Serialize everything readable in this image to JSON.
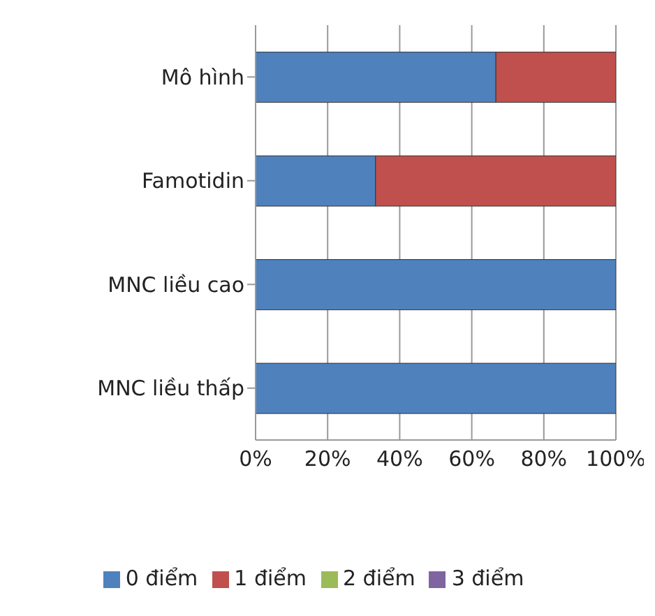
{
  "chart_data": {
    "type": "bar",
    "orientation": "horizontal",
    "stacked": true,
    "categories": [
      "Mô hình",
      "Famotidin",
      "MNC liều cao",
      "MNC liều thấp"
    ],
    "series": [
      {
        "name": "0 điểm",
        "color": "#4f81bd",
        "values": [
          66.7,
          33.3,
          100,
          100
        ]
      },
      {
        "name": "1 điểm",
        "color": "#c0504d",
        "values": [
          33.3,
          66.7,
          0,
          0
        ]
      },
      {
        "name": "2 điểm",
        "color": "#9bbb59",
        "values": [
          0,
          0,
          0,
          0
        ]
      },
      {
        "name": "3 điểm",
        "color": "#8064a2",
        "values": [
          0,
          0,
          0,
          0
        ]
      }
    ],
    "xlim": [
      0,
      100
    ],
    "xticks": [
      {
        "value": 0,
        "label": "0%"
      },
      {
        "value": 20,
        "label": "20%"
      },
      {
        "value": 40,
        "label": "40%"
      },
      {
        "value": 60,
        "label": "60%"
      },
      {
        "value": 80,
        "label": "80%"
      },
      {
        "value": 100,
        "label": "100%"
      }
    ],
    "grid": "x",
    "legend": "bottom"
  }
}
